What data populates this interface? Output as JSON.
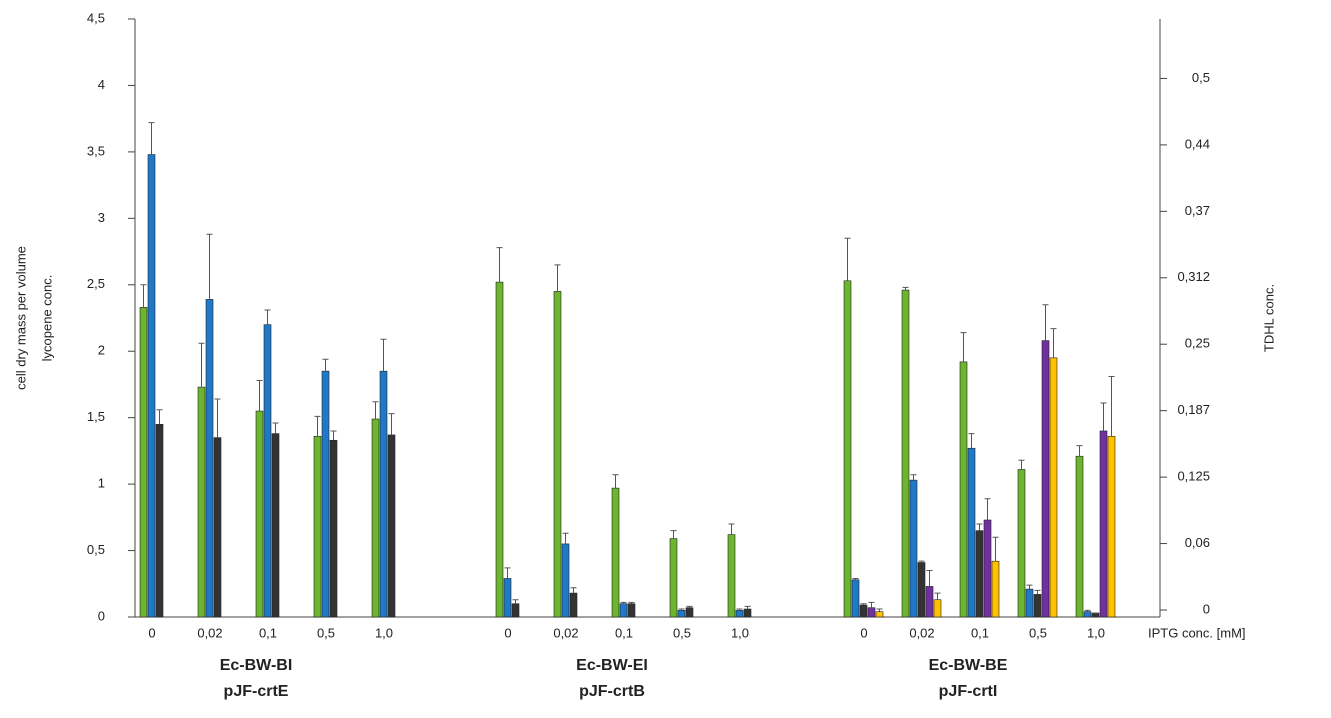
{
  "chart_data": {
    "type": "bar",
    "ylabel": [
      "cell dry mass per volume",
      "lycopene conc."
    ],
    "y2label": "TDHL conc.",
    "xlabel": "IPTG conc. [mM]",
    "categories": [
      "0",
      "0,02",
      "0,1",
      "0,5",
      "1,0",
      "0",
      "0,02",
      "0,1",
      "0,5",
      "1,0",
      "0",
      "0,02",
      "0,1",
      "0,5",
      "1,0"
    ],
    "groups": [
      [
        "Ec-BW-BI",
        "pJF-crtE"
      ],
      [
        "Ec-BW-EI",
        "pJF-crtB"
      ],
      [
        "Ec-BW-BE",
        "pJF-crtI"
      ]
    ],
    "ylim": [
      0,
      4.5
    ],
    "yticks": [
      0,
      {
        "value": 0.5,
        "label": "0,5"
      },
      1,
      {
        "value": 1.5,
        "label": "1,5"
      },
      2,
      {
        "value": 2.5,
        "label": "2,5"
      },
      3,
      {
        "value": 3.5,
        "label": "3,5"
      },
      4,
      {
        "value": 4.5,
        "label": "4,5"
      }
    ],
    "y2lim": [
      0,
      0.5625
    ],
    "y2ticks": [
      0,
      {
        "value": 0.0625,
        "label": "0,06"
      },
      {
        "value": 0.125,
        "label": "0,125"
      },
      {
        "value": 0.1875,
        "label": "0,187"
      },
      {
        "value": 0.25,
        "label": "0,25"
      },
      {
        "value": 0.3125,
        "label": "0,312"
      },
      {
        "value": 0.375,
        "label": "0,37"
      },
      {
        "value": 0.4375,
        "label": "0,44"
      },
      {
        "value": 0.5,
        "label": "0,5"
      }
    ],
    "series": [
      {
        "color": "#6cb52e",
        "values": [
          2.33,
          1.73,
          1.55,
          1.36,
          1.49,
          2.52,
          2.45,
          0.97,
          0.59,
          0.62,
          2.53,
          2.46,
          1.92,
          1.11,
          1.21
        ],
        "errors": [
          0.17,
          0.33,
          0.23,
          0.15,
          0.13,
          0.26,
          0.2,
          0.1,
          0.06,
          0.08,
          0.32,
          0.02,
          0.22,
          0.07,
          0.08
        ]
      },
      {
        "color": "#1f78c8",
        "values": [
          3.48,
          2.39,
          2.2,
          1.85,
          1.85,
          0.29,
          0.55,
          0.1,
          0.05,
          0.05,
          0.28,
          1.03,
          1.27,
          0.21,
          0.04
        ],
        "errors": [
          0.24,
          0.49,
          0.11,
          0.09,
          0.24,
          0.08,
          0.08,
          0.01,
          0.01,
          0.01,
          0.01,
          0.04,
          0.11,
          0.03,
          0.01
        ]
      },
      {
        "color": "#333333",
        "values": [
          1.45,
          1.35,
          1.38,
          1.33,
          1.37,
          0.1,
          0.18,
          0.1,
          0.07,
          0.06,
          0.09,
          0.41,
          0.65,
          0.17,
          0.03
        ],
        "errors": [
          0.11,
          0.29,
          0.08,
          0.07,
          0.16,
          0.03,
          0.04,
          0.01,
          0.01,
          0.02,
          0.01,
          0.01,
          0.05,
          0.03,
          0
        ]
      },
      {
        "color": "#7030a0",
        "values": [
          null,
          null,
          null,
          null,
          null,
          null,
          null,
          null,
          null,
          null,
          0.07,
          0.23,
          0.73,
          2.08,
          1.4
        ],
        "errors": [
          null,
          null,
          null,
          null,
          null,
          null,
          null,
          null,
          null,
          null,
          0.04,
          0.12,
          0.16,
          0.27,
          0.21
        ]
      },
      {
        "color": "#ffc000",
        "values": [
          null,
          null,
          null,
          null,
          null,
          null,
          null,
          null,
          null,
          null,
          0.04,
          0.13,
          0.42,
          1.95,
          1.36
        ],
        "errors": [
          null,
          null,
          null,
          null,
          null,
          null,
          null,
          null,
          null,
          null,
          0.02,
          0.05,
          0.18,
          0.22,
          0.45
        ]
      }
    ]
  }
}
